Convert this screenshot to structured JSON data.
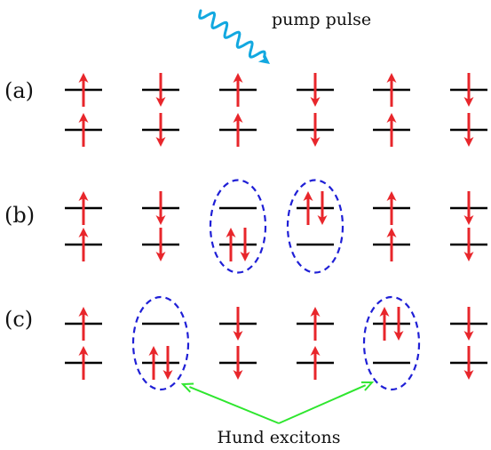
{
  "labels": {
    "pump": "pump pulse",
    "row_a": "(a)",
    "row_b": "(b)",
    "row_c": "(c)",
    "hund": "Hund excitons"
  },
  "colors": {
    "spin": "#e8262b",
    "level": "#000000",
    "exciton_ring": "#1f1fd6",
    "pointer": "#2ee62e",
    "pump_wave": "#12a8e0"
  },
  "rows": [
    {
      "id": "a",
      "sites": [
        {
          "upper": [
            "up"
          ],
          "lower": [
            "up"
          ]
        },
        {
          "upper": [
            "down"
          ],
          "lower": [
            "down"
          ]
        },
        {
          "upper": [
            "up"
          ],
          "lower": [
            "up"
          ]
        },
        {
          "upper": [
            "down"
          ],
          "lower": [
            "down"
          ]
        },
        {
          "upper": [
            "up"
          ],
          "lower": [
            "up"
          ]
        },
        {
          "upper": [
            "down"
          ],
          "lower": [
            "down"
          ]
        }
      ]
    },
    {
      "id": "b",
      "sites": [
        {
          "upper": [
            "up"
          ],
          "lower": [
            "up"
          ]
        },
        {
          "upper": [
            "down"
          ],
          "lower": [
            "down"
          ]
        },
        {
          "upper": [],
          "lower": [
            "up",
            "down"
          ],
          "exciton": true
        },
        {
          "upper": [
            "up",
            "down"
          ],
          "lower": [],
          "exciton": true
        },
        {
          "upper": [
            "up"
          ],
          "lower": [
            "up"
          ]
        },
        {
          "upper": [
            "down"
          ],
          "lower": [
            "down"
          ]
        }
      ]
    },
    {
      "id": "c",
      "sites": [
        {
          "upper": [
            "up"
          ],
          "lower": [
            "up"
          ]
        },
        {
          "upper": [],
          "lower": [
            "up",
            "down"
          ],
          "exciton": true
        },
        {
          "upper": [
            "down"
          ],
          "lower": [
            "down"
          ]
        },
        {
          "upper": [
            "up"
          ],
          "lower": [
            "up"
          ]
        },
        {
          "upper": [
            "up",
            "down"
          ],
          "lower": [],
          "exciton": true
        },
        {
          "upper": [
            "down"
          ],
          "lower": [
            "down"
          ]
        }
      ]
    }
  ]
}
